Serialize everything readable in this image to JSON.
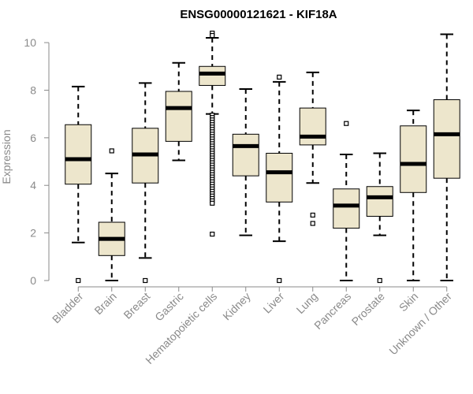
{
  "chart_data": {
    "type": "boxplot",
    "title": "ENSG00000121621 - KIF18A",
    "xlabel": "",
    "ylabel": "Expression",
    "ylim": [
      0,
      10.4
    ],
    "yticks": [
      "0",
      "2",
      "4",
      "6",
      "8",
      "10"
    ],
    "colors": {
      "box_fill": "#ede6cc",
      "stroke": "#000000",
      "axis": "#8a8a8a"
    },
    "categories": [
      "Bladder",
      "Brain",
      "Breast",
      "Gastric",
      "Hematopoietic cells",
      "Kidney",
      "Liver",
      "Lung",
      "Pancreas",
      "Prostate",
      "Skin",
      "Unknown / Other"
    ],
    "boxes": [
      {
        "whisker_low": 1.6,
        "q1": 4.05,
        "median": 5.1,
        "q3": 6.55,
        "whisker_high": 8.15,
        "outliers": [
          0.0
        ]
      },
      {
        "whisker_low": 0.0,
        "q1": 1.05,
        "median": 1.75,
        "q3": 2.45,
        "whisker_high": 4.5,
        "outliers": [
          5.45
        ]
      },
      {
        "whisker_low": 0.95,
        "q1": 4.1,
        "median": 5.3,
        "q3": 6.4,
        "whisker_high": 8.3,
        "outliers": [
          0.0
        ]
      },
      {
        "whisker_low": 5.05,
        "q1": 5.85,
        "median": 7.25,
        "q3": 7.95,
        "whisker_high": 9.15,
        "outliers": []
      },
      {
        "whisker_low": 7.0,
        "q1": 8.2,
        "median": 8.7,
        "q3": 9.0,
        "whisker_high": 10.2,
        "outliers": [
          10.4,
          10.3,
          6.95,
          6.85,
          6.75,
          6.65,
          6.55,
          6.45,
          6.35,
          6.25,
          6.15,
          6.05,
          5.95,
          5.85,
          5.75,
          5.65,
          5.55,
          5.45,
          5.35,
          5.25,
          5.15,
          5.05,
          4.95,
          4.85,
          4.75,
          4.65,
          4.55,
          4.45,
          4.35,
          4.25,
          4.15,
          4.05,
          3.95,
          3.85,
          3.75,
          3.65,
          3.55,
          3.45,
          3.35,
          3.25,
          1.95
        ]
      },
      {
        "whisker_low": 1.9,
        "q1": 4.4,
        "median": 5.65,
        "q3": 6.15,
        "whisker_high": 8.05,
        "outliers": []
      },
      {
        "whisker_low": 1.65,
        "q1": 3.3,
        "median": 4.55,
        "q3": 5.35,
        "whisker_high": 8.35,
        "outliers": [
          8.55,
          0.0
        ]
      },
      {
        "whisker_low": 4.1,
        "q1": 5.7,
        "median": 6.05,
        "q3": 7.25,
        "whisker_high": 8.75,
        "outliers": [
          2.75,
          2.4
        ]
      },
      {
        "whisker_low": 0.0,
        "q1": 2.2,
        "median": 3.15,
        "q3": 3.85,
        "whisker_high": 5.3,
        "outliers": [
          6.6
        ]
      },
      {
        "whisker_low": 1.9,
        "q1": 2.7,
        "median": 3.5,
        "q3": 3.95,
        "whisker_high": 5.35,
        "outliers": [
          0.0
        ]
      },
      {
        "whisker_low": 0.0,
        "q1": 3.7,
        "median": 4.9,
        "q3": 6.5,
        "whisker_high": 7.15,
        "outliers": []
      },
      {
        "whisker_low": 0.0,
        "q1": 4.3,
        "median": 6.15,
        "q3": 7.6,
        "whisker_high": 10.35,
        "outliers": []
      }
    ]
  }
}
